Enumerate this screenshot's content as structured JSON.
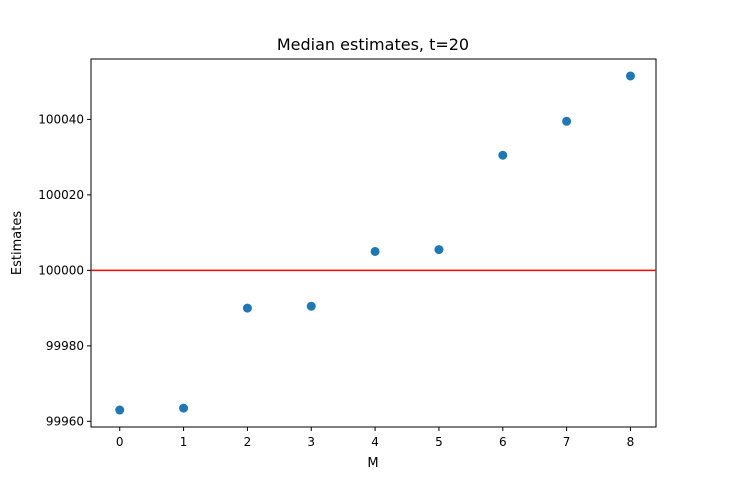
{
  "chart_data": {
    "type": "scatter",
    "title": "Median estimates, t=20",
    "xlabel": "M",
    "ylabel": "Estimates",
    "x": [
      0,
      1,
      2,
      3,
      4,
      5,
      6,
      7,
      8
    ],
    "y": [
      99963,
      99963.5,
      99990,
      99990.5,
      100005,
      100005.5,
      100030.5,
      100039.5,
      100051.5
    ],
    "xlim": [
      -0.45,
      8.4
    ],
    "ylim": [
      99958.5,
      100056
    ],
    "xticks": [
      0,
      1,
      2,
      3,
      4,
      5,
      6,
      7,
      8
    ],
    "yticks": [
      99960,
      99980,
      100000,
      100020,
      100040
    ],
    "reference_line": {
      "y": 100000,
      "color": "#ff0000"
    },
    "point_color": "#1f77b4",
    "grid": false,
    "legend": "none"
  }
}
